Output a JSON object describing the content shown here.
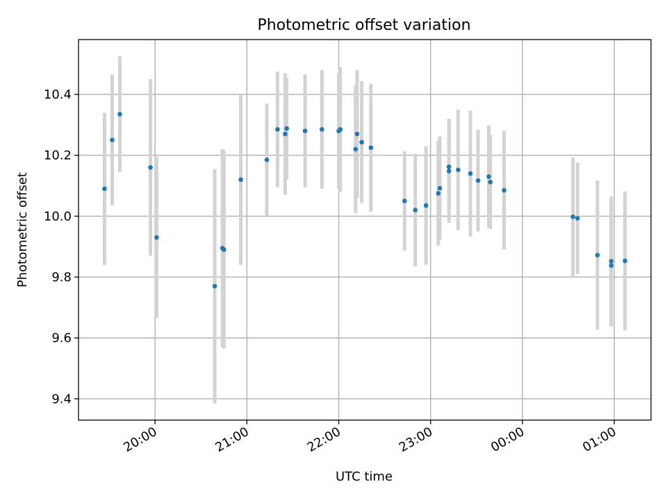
{
  "chart_data": {
    "type": "scatter",
    "title": "Photometric offset variation",
    "xlabel": "UTC time",
    "ylabel": "Photometric offset",
    "xlim": [
      "19:10",
      "01:24"
    ],
    "ylim": [
      9.33,
      10.58
    ],
    "grid": true,
    "x_ticks": [
      "20:00",
      "21:00",
      "22:00",
      "23:00",
      "00:00",
      "01:00"
    ],
    "y_ticks": [
      9.4,
      9.6,
      9.8,
      10.0,
      10.2,
      10.4
    ],
    "marker_color": "#1f77b4",
    "errorbar_color": "#d3d3d3",
    "points": [
      {
        "x": "19:27",
        "y": 10.09,
        "err": 0.25
      },
      {
        "x": "19:32",
        "y": 10.25,
        "err": 0.215
      },
      {
        "x": "19:37",
        "y": 10.335,
        "err": 0.19
      },
      {
        "x": "19:57",
        "y": 10.16,
        "err": 0.29
      },
      {
        "x": "20:01",
        "y": 9.93,
        "err": 0.265
      },
      {
        "x": "20:39",
        "y": 9.77,
        "err": 0.385
      },
      {
        "x": "20:44",
        "y": 9.895,
        "err": 0.325
      },
      {
        "x": "20:45",
        "y": 9.89,
        "err": 0.325
      },
      {
        "x": "20:56",
        "y": 10.12,
        "err": 0.28
      },
      {
        "x": "21:13",
        "y": 10.185,
        "err": 0.185
      },
      {
        "x": "21:20",
        "y": 10.285,
        "err": 0.19
      },
      {
        "x": "21:25",
        "y": 10.27,
        "err": 0.2
      },
      {
        "x": "21:26",
        "y": 10.288,
        "err": 0.167
      },
      {
        "x": "21:38",
        "y": 10.28,
        "err": 0.185
      },
      {
        "x": "21:49",
        "y": 10.285,
        "err": 0.195
      },
      {
        "x": "22:00",
        "y": 10.28,
        "err": 0.19
      },
      {
        "x": "22:01",
        "y": 10.285,
        "err": 0.205
      },
      {
        "x": "22:11",
        "y": 10.22,
        "err": 0.21
      },
      {
        "x": "22:12",
        "y": 10.27,
        "err": 0.21
      },
      {
        "x": "22:15",
        "y": 10.243,
        "err": 0.2
      },
      {
        "x": "22:21",
        "y": 10.225,
        "err": 0.21
      },
      {
        "x": "22:43",
        "y": 10.05,
        "err": 0.163
      },
      {
        "x": "22:50",
        "y": 10.02,
        "err": 0.185
      },
      {
        "x": "22:57",
        "y": 10.035,
        "err": 0.195
      },
      {
        "x": "23:05",
        "y": 10.075,
        "err": 0.172
      },
      {
        "x": "23:06",
        "y": 10.092,
        "err": 0.17
      },
      {
        "x": "23:12",
        "y": 10.162,
        "err": 0.158
      },
      {
        "x": "23:12",
        "y": 10.148,
        "err": 0.17
      },
      {
        "x": "23:18",
        "y": 10.152,
        "err": 0.198
      },
      {
        "x": "23:26",
        "y": 10.14,
        "err": 0.207
      },
      {
        "x": "23:31",
        "y": 10.117,
        "err": 0.167
      },
      {
        "x": "23:38",
        "y": 10.13,
        "err": 0.168
      },
      {
        "x": "23:39",
        "y": 10.112,
        "err": 0.155
      },
      {
        "x": "23:48",
        "y": 10.085,
        "err": 0.195
      },
      {
        "x": "00:33",
        "y": 9.998,
        "err": 0.195
      },
      {
        "x": "00:36",
        "y": 9.993,
        "err": 0.183
      },
      {
        "x": "00:49",
        "y": 9.872,
        "err": 0.245
      },
      {
        "x": "00:58",
        "y": 9.852,
        "err": 0.213
      },
      {
        "x": "00:58",
        "y": 9.838,
        "err": 0.2
      },
      {
        "x": "01:07",
        "y": 9.853,
        "err": 0.228
      }
    ]
  }
}
